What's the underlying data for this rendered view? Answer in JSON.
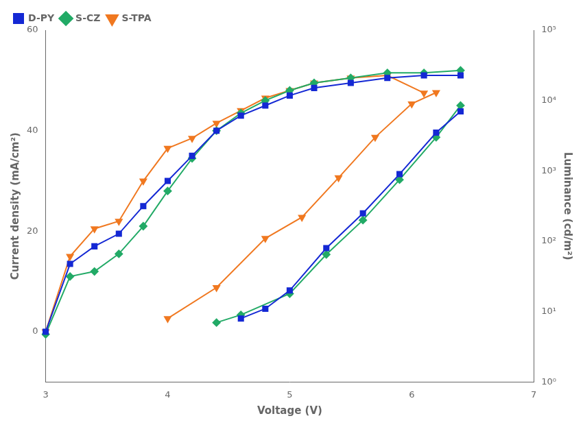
{
  "chart_data": {
    "type": "line",
    "xlabel": "Voltage (V)",
    "ylabel": "Current density (mA/cm²)",
    "y2label": "Luminance (cd/m²)",
    "xlim": [
      3.0,
      7.0
    ],
    "xticks": [
      3,
      4,
      5,
      6,
      7
    ],
    "ylim": [
      -10,
      60
    ],
    "yticks": [
      0,
      20,
      40,
      60
    ],
    "y2lim": [
      1.0,
      100000.0
    ],
    "y2ticks": [
      {
        "value": 1,
        "label": "10⁰"
      },
      {
        "value": 10,
        "label": "10¹"
      },
      {
        "value": 100,
        "label": "10²"
      },
      {
        "value": 1000,
        "label": "10³"
      },
      {
        "value": 10000,
        "label": "10⁴"
      },
      {
        "value": 100000,
        "label": "10⁵"
      }
    ],
    "log": "y2",
    "grid": false,
    "legend": "upper left",
    "series": [
      {
        "name": "D-PY",
        "color": "#1428d4",
        "marker": "square",
        "x": [
          3.0,
          3.2,
          3.4,
          3.6,
          3.8,
          4.0,
          4.2,
          4.4,
          4.6,
          4.8,
          5.0,
          5.2,
          5.5,
          5.8,
          6.1,
          6.4
        ],
        "values": [
          0.0,
          13.5,
          17.0,
          19.5,
          25.0,
          30.0,
          35.0,
          40.0,
          43.0,
          45.0,
          47.0,
          48.5,
          49.5,
          50.5,
          51.0,
          51.0
        ]
      },
      {
        "name": "S-CZ",
        "color": "#22aa66",
        "marker": "pentagon",
        "x": [
          3.0,
          3.2,
          3.4,
          3.6,
          3.8,
          4.0,
          4.2,
          4.4,
          4.6,
          4.8,
          5.0,
          5.2,
          5.5,
          5.8,
          6.1,
          6.4
        ],
        "values": [
          -0.5,
          11.0,
          12.0,
          15.5,
          21.0,
          28.0,
          34.5,
          40.0,
          43.5,
          46.0,
          48.0,
          49.5,
          50.5,
          51.5,
          51.5,
          52.0
        ]
      },
      {
        "name": "S-TPA",
        "color": "#f07820",
        "marker": "triangle_down",
        "x": [
          3.0,
          3.2,
          3.4,
          3.6,
          3.8,
          4.0,
          4.2,
          4.4,
          4.6,
          4.8,
          5.0,
          5.2,
          5.5,
          5.8,
          6.1
        ],
        "values": [
          0.0,
          15.0,
          20.5,
          22.0,
          30.0,
          36.5,
          38.5,
          41.5,
          44.0,
          46.5,
          48.0,
          49.5,
          50.5,
          51.0,
          47.5
        ]
      },
      {
        "color": "#1428d4",
        "marker": "square",
        "axis": "y2",
        "x": [
          4.6,
          4.8,
          5.0,
          5.3,
          5.6,
          5.9,
          6.2,
          6.4
        ],
        "values": [
          8.0,
          11.0,
          20.0,
          80.0,
          250.0,
          900.0,
          3500.0,
          7000.0
        ]
      },
      {
        "color": "#22aa66",
        "marker": "pentagon",
        "axis": "y2",
        "x": [
          4.4,
          4.6,
          5.0,
          5.3,
          5.6,
          5.9,
          6.2,
          6.4
        ],
        "values": [
          7.0,
          9.0,
          18.0,
          65.0,
          200.0,
          750.0,
          3000.0,
          8500.0
        ]
      },
      {
        "color": "#f07820",
        "marker": "triangle_down",
        "axis": "y2",
        "x": [
          4.0,
          4.4,
          4.8,
          5.1,
          5.4,
          5.7,
          6.0,
          6.2
        ],
        "values": [
          8.0,
          22.0,
          110.0,
          220.0,
          800.0,
          3000.0,
          9000.0,
          13000.0
        ]
      }
    ]
  }
}
